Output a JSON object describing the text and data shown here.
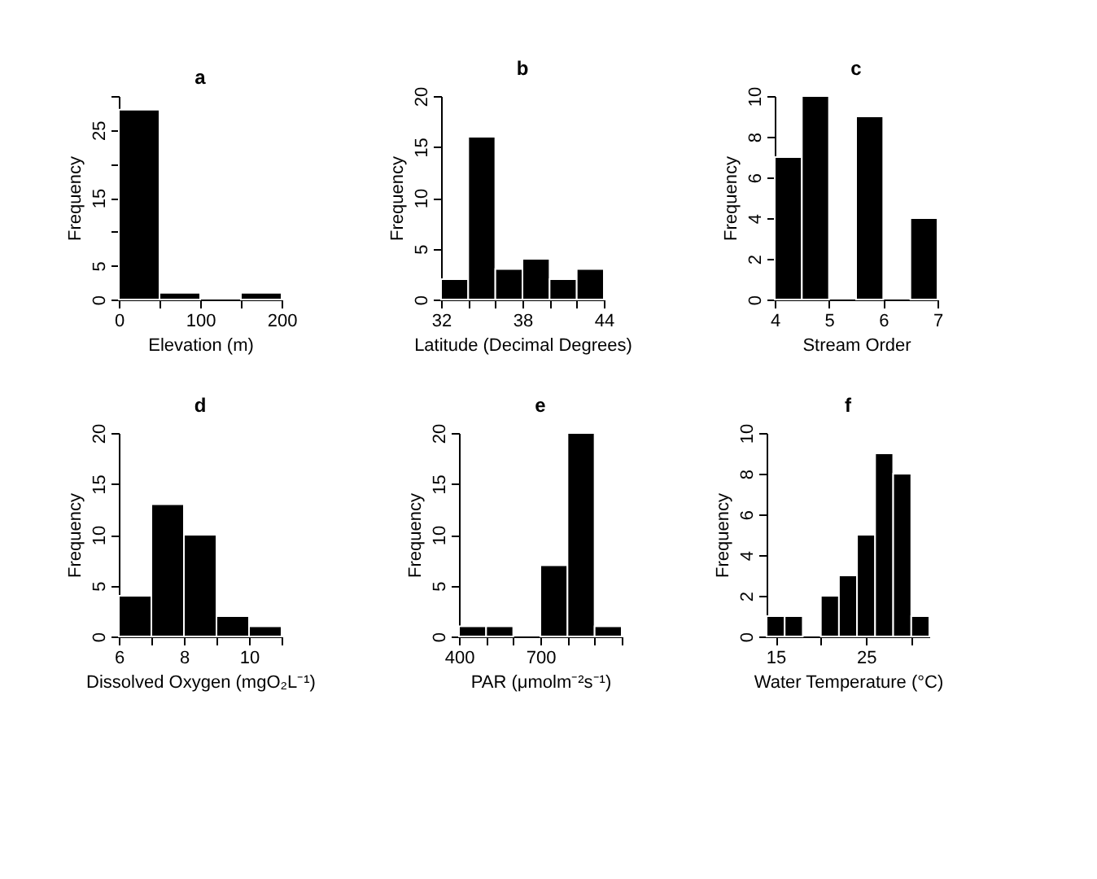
{
  "chart_data": [
    {
      "type": "histogram",
      "title": "a",
      "xlabel": "Elevation (m)",
      "ylabel": "Frequency",
      "color": "#000000",
      "bins": [
        0,
        50,
        100,
        150,
        200
      ],
      "values": [
        28,
        1,
        0,
        1
      ],
      "xlim": [
        0,
        200
      ],
      "ylim": [
        0,
        30
      ],
      "xticks": [
        0,
        {
          "value": 50,
          "label": null
        },
        100,
        {
          "value": 150,
          "label": null
        },
        200
      ],
      "yticks": [
        0,
        5,
        {
          "value": 10,
          "label": null
        },
        15,
        {
          "value": 20,
          "label": null
        },
        25,
        {
          "value": 30,
          "label": null
        }
      ]
    },
    {
      "type": "histogram",
      "title": "b",
      "xlabel": "Latitude (Decimal Degrees)",
      "ylabel": "Frequency",
      "color": "#000000",
      "bins": [
        32,
        34,
        36,
        38,
        40,
        42,
        44
      ],
      "values": [
        2,
        16,
        3,
        4,
        2,
        3
      ],
      "xlim": [
        32,
        44
      ],
      "ylim": [
        0,
        20
      ],
      "xticks": [
        32,
        {
          "value": 34,
          "label": null
        },
        {
          "value": 36,
          "label": null
        },
        38,
        {
          "value": 40,
          "label": null
        },
        {
          "value": 42,
          "label": null
        },
        44
      ],
      "yticks": [
        0,
        5,
        10,
        15,
        20
      ]
    },
    {
      "type": "histogram",
      "title": "c",
      "xlabel": "Stream Order",
      "ylabel": "Frequency",
      "color": "#000000",
      "bins": [
        4,
        4.5,
        5,
        5.5,
        6,
        6.5,
        7
      ],
      "values": [
        7,
        10,
        0,
        9,
        0,
        4
      ],
      "xlim": [
        4,
        7
      ],
      "ylim": [
        0,
        10
      ],
      "xticks": [
        4,
        5,
        6,
        7
      ],
      "yticks": [
        0,
        2,
        4,
        6,
        8,
        10
      ]
    },
    {
      "type": "histogram",
      "title": "d",
      "xlabel": "Dissolved Oxygen (mgO₂L⁻¹)",
      "ylabel": "Frequency",
      "color": "#000000",
      "bins": [
        6,
        7,
        8,
        9,
        10,
        11
      ],
      "values": [
        4,
        13,
        10,
        2,
        1
      ],
      "xlim": [
        6,
        11
      ],
      "ylim": [
        0,
        20
      ],
      "xticks": [
        6,
        {
          "value": 7,
          "label": null
        },
        8,
        {
          "value": 9,
          "label": null
        },
        10,
        {
          "value": 11,
          "label": null
        }
      ],
      "yticks": [
        0,
        5,
        10,
        15,
        20
      ]
    },
    {
      "type": "histogram",
      "title": "e",
      "xlabel": "PAR (μmolm⁻²s⁻¹)",
      "ylabel": "Frequency",
      "color": "#000000",
      "bins": [
        400,
        500,
        600,
        700,
        800,
        900,
        1000
      ],
      "values": [
        1,
        1,
        0,
        7,
        20,
        1
      ],
      "xlim": [
        400,
        1000
      ],
      "ylim": [
        0,
        20
      ],
      "xticks": [
        400,
        {
          "value": 500,
          "label": null
        },
        {
          "value": 600,
          "label": null
        },
        700,
        {
          "value": 800,
          "label": null
        },
        {
          "value": 900,
          "label": null
        },
        {
          "value": 1000,
          "label": null
        }
      ],
      "yticks": [
        0,
        5,
        10,
        15,
        20
      ]
    },
    {
      "type": "histogram",
      "title": "f",
      "xlabel": "Water Temperature (°C)",
      "ylabel": "Frequency",
      "color": "#000000",
      "bins": [
        14,
        16,
        18,
        20,
        22,
        24,
        26,
        28,
        30,
        32
      ],
      "values": [
        1,
        1,
        0,
        2,
        3,
        5,
        9,
        8,
        1
      ],
      "xlim": [
        14,
        32
      ],
      "ylim": [
        0,
        10
      ],
      "xticks": [
        15,
        {
          "value": 20,
          "label": null
        },
        25,
        {
          "value": 30,
          "label": null
        }
      ],
      "yticks": [
        0,
        2,
        4,
        6,
        8,
        10
      ]
    }
  ]
}
